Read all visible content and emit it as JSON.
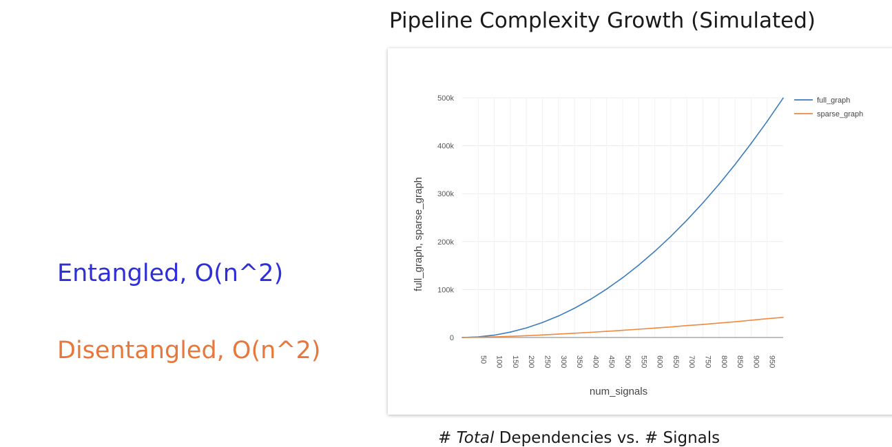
{
  "slide": {
    "title": "Pipeline Complexity Growth (Simulated)",
    "entangled_label": "Entangled, O(n^2)",
    "disentangled_label": "Disentangled, O(n^2)",
    "caption_prefix": "# ",
    "caption_em": "Total",
    "caption_suffix": " Dependencies vs. # Signals",
    "colors": {
      "entangled": "#2f2fd8",
      "disentangled": "#e8773c"
    }
  },
  "chart_data": {
    "type": "line",
    "title": "",
    "xlabel": "num_signals",
    "ylabel": "full_graph, sparse_graph",
    "xlim": [
      0,
      1000
    ],
    "ylim": [
      0,
      500000
    ],
    "x_ticks": [
      50,
      100,
      150,
      200,
      250,
      300,
      350,
      400,
      450,
      500,
      550,
      600,
      650,
      700,
      750,
      800,
      850,
      900,
      950
    ],
    "y_ticks": [
      0,
      100000,
      200000,
      300000,
      400000,
      500000
    ],
    "y_tick_labels": [
      "0",
      "100k",
      "200k",
      "300k",
      "400k",
      "500k"
    ],
    "grid": true,
    "legend_position": "top-right",
    "series": [
      {
        "name": "full_graph",
        "color": "#3a7bbf",
        "x": [
          0,
          50,
          100,
          150,
          200,
          250,
          300,
          350,
          400,
          450,
          500,
          550,
          600,
          650,
          700,
          750,
          800,
          850,
          900,
          950,
          1000
        ],
        "values": [
          0,
          1225,
          4950,
          11175,
          19900,
          31125,
          44850,
          61075,
          79800,
          101025,
          124750,
          150975,
          179700,
          210925,
          244650,
          280875,
          319600,
          360825,
          404550,
          450775,
          499500
        ]
      },
      {
        "name": "sparse_graph",
        "color": "#f0883e",
        "x": [
          0,
          50,
          100,
          150,
          200,
          250,
          300,
          350,
          400,
          450,
          500,
          550,
          600,
          650,
          700,
          750,
          800,
          850,
          900,
          950,
          1000
        ],
        "values": [
          0,
          600,
          1400,
          2500,
          3800,
          5300,
          7000,
          8900,
          10800,
          12800,
          15000,
          17200,
          19700,
          22000,
          24800,
          27200,
          30000,
          32800,
          36000,
          39200,
          42000
        ]
      }
    ]
  }
}
